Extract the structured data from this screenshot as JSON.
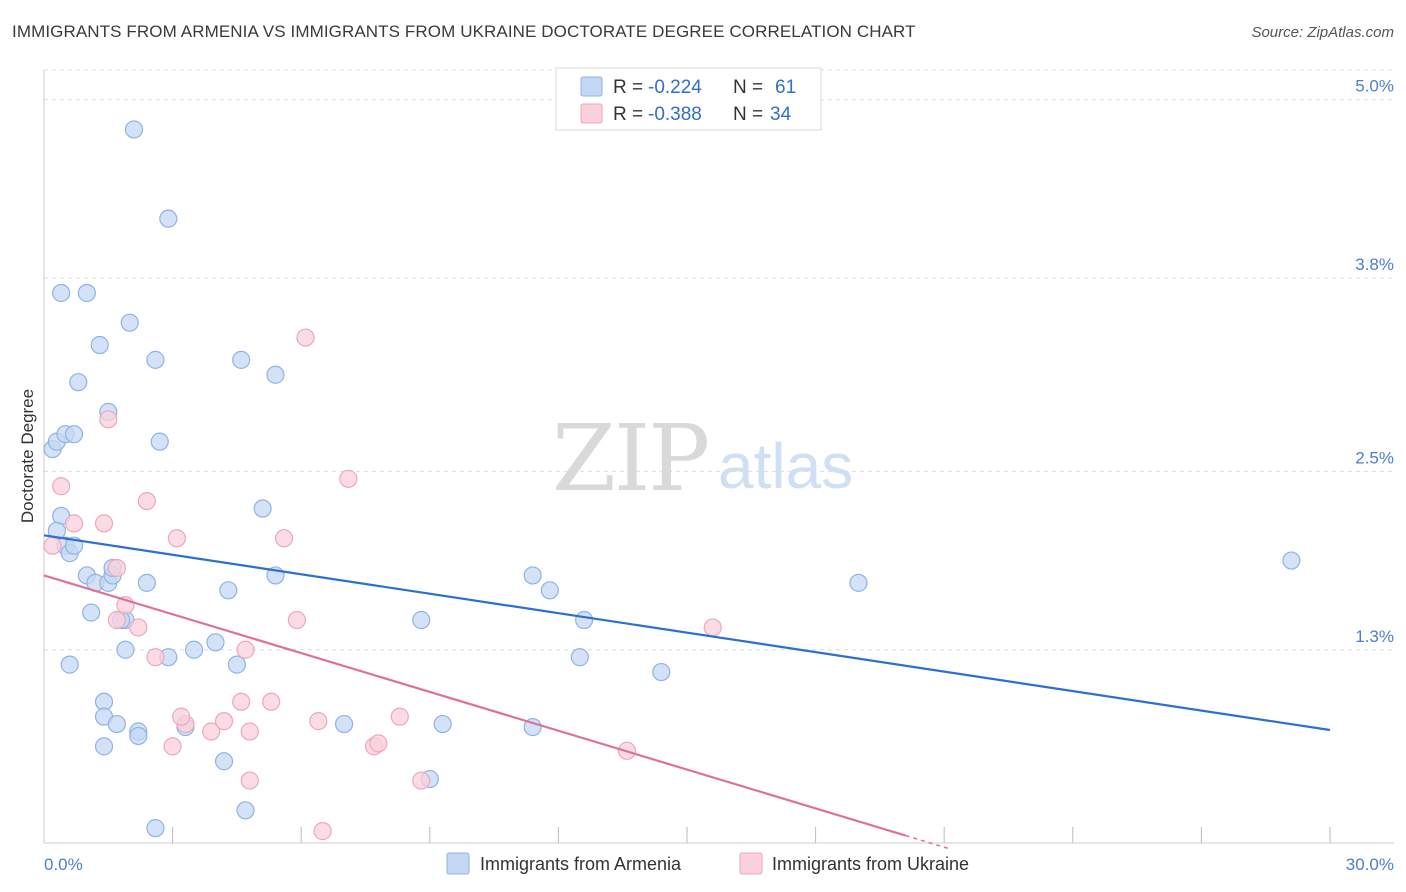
{
  "header": {
    "title": "IMMIGRANTS FROM ARMENIA VS IMMIGRANTS FROM UKRAINE DOCTORATE DEGREE CORRELATION CHART",
    "source": "Source: ZipAtlas.com"
  },
  "watermark": {
    "zip": "ZIP",
    "atlas": "atlas"
  },
  "colors": {
    "armenia_fill": "#c4d8f4",
    "armenia_stroke": "#8fb3e6",
    "armenia_line": "#2b6fd1",
    "ukraine_fill": "#f9d0dc",
    "ukraine_stroke": "#eda7bd",
    "ukraine_line": "#e0709a",
    "tick_text": "#4a7fd0",
    "grid": "#dcdcdc"
  },
  "legend_top": [
    {
      "r_label": "R =",
      "r_value": "-0.224",
      "n_label": "N =",
      "n_value": "61"
    },
    {
      "r_label": "R =",
      "r_value": "-0.388",
      "n_label": "N =",
      "n_value": "34"
    }
  ],
  "chart_data": {
    "type": "scatter",
    "title": "IMMIGRANTS FROM ARMENIA VS IMMIGRANTS FROM UKRAINE DOCTORATE DEGREE CORRELATION CHART",
    "xlabel": "",
    "ylabel": "Doctorate Degree",
    "xlim": [
      0,
      30
    ],
    "ylim": [
      0,
      5.2
    ],
    "x_tick_labels": [
      "0.0%",
      "30.0%"
    ],
    "y_ticks": [
      {
        "value": 1.3,
        "label": "1.3%"
      },
      {
        "value": 2.5,
        "label": "2.5%"
      },
      {
        "value": 3.8,
        "label": "3.8%"
      },
      {
        "value": 5.0,
        "label": "5.0%"
      }
    ],
    "series": [
      {
        "name": "Immigrants from Armenia",
        "r": -0.224,
        "n": 61,
        "trend": {
          "x": [
            0,
            30
          ],
          "y": [
            2.07,
            0.76
          ]
        },
        "points": [
          [
            0.2,
            2.65
          ],
          [
            0.3,
            2.7
          ],
          [
            0.5,
            2.75
          ],
          [
            0.7,
            2.75
          ],
          [
            0.4,
            2.2
          ],
          [
            0.3,
            2.1
          ],
          [
            0.5,
            2.0
          ],
          [
            0.6,
            1.95
          ],
          [
            0.7,
            2.0
          ],
          [
            0.8,
            3.1
          ],
          [
            1.5,
            2.9
          ],
          [
            0.4,
            3.7
          ],
          [
            1.0,
            3.7
          ],
          [
            1.3,
            3.35
          ],
          [
            2.0,
            3.5
          ],
          [
            2.6,
            3.25
          ],
          [
            4.6,
            3.25
          ],
          [
            5.4,
            3.15
          ],
          [
            2.1,
            4.8
          ],
          [
            2.9,
            4.2
          ],
          [
            2.7,
            2.7
          ],
          [
            1.0,
            1.8
          ],
          [
            1.2,
            1.75
          ],
          [
            1.5,
            1.75
          ],
          [
            1.6,
            1.8
          ],
          [
            1.1,
            1.55
          ],
          [
            1.9,
            1.5
          ],
          [
            1.9,
            1.3
          ],
          [
            2.4,
            1.75
          ],
          [
            2.9,
            1.25
          ],
          [
            1.8,
            1.5
          ],
          [
            4.3,
            1.7
          ],
          [
            4.0,
            1.35
          ],
          [
            4.5,
            1.2
          ],
          [
            3.5,
            1.3
          ],
          [
            0.6,
            1.2
          ],
          [
            1.4,
            0.95
          ],
          [
            1.4,
            0.85
          ],
          [
            1.7,
            0.8
          ],
          [
            2.2,
            0.75
          ],
          [
            2.2,
            0.72
          ],
          [
            3.3,
            0.78
          ],
          [
            1.4,
            0.65
          ],
          [
            4.2,
            0.55
          ],
          [
            4.7,
            0.22
          ],
          [
            2.6,
            0.1
          ],
          [
            5.1,
            2.25
          ],
          [
            5.4,
            1.8
          ],
          [
            7.0,
            0.8
          ],
          [
            8.8,
            1.5
          ],
          [
            9.3,
            0.8
          ],
          [
            9.0,
            0.43
          ],
          [
            11.4,
            1.8
          ],
          [
            11.8,
            1.7
          ],
          [
            12.6,
            1.5
          ],
          [
            12.5,
            1.25
          ],
          [
            11.4,
            0.78
          ],
          [
            14.4,
            1.15
          ],
          [
            19.0,
            1.75
          ],
          [
            29.1,
            1.9
          ],
          [
            1.6,
            1.85
          ]
        ]
      },
      {
        "name": "Immigrants from Ukraine",
        "r": -0.388,
        "n": 34,
        "trend": {
          "x": [
            0,
            20.1
          ],
          "y": [
            1.8,
            0.05
          ]
        },
        "points": [
          [
            0.2,
            2.0
          ],
          [
            0.4,
            2.4
          ],
          [
            0.7,
            2.15
          ],
          [
            1.4,
            2.15
          ],
          [
            1.5,
            2.85
          ],
          [
            2.4,
            2.3
          ],
          [
            3.1,
            2.05
          ],
          [
            1.7,
            1.85
          ],
          [
            1.9,
            1.6
          ],
          [
            1.7,
            1.5
          ],
          [
            2.2,
            1.45
          ],
          [
            2.6,
            1.25
          ],
          [
            3.0,
            0.65
          ],
          [
            3.3,
            0.8
          ],
          [
            3.2,
            0.85
          ],
          [
            3.9,
            0.75
          ],
          [
            4.2,
            0.82
          ],
          [
            4.6,
            0.95
          ],
          [
            4.8,
            0.75
          ],
          [
            5.3,
            0.95
          ],
          [
            4.8,
            0.42
          ],
          [
            4.7,
            1.3
          ],
          [
            5.6,
            2.05
          ],
          [
            5.9,
            1.5
          ],
          [
            6.1,
            3.4
          ],
          [
            6.4,
            0.82
          ],
          [
            7.1,
            2.45
          ],
          [
            7.7,
            0.65
          ],
          [
            7.8,
            0.67
          ],
          [
            8.3,
            0.85
          ],
          [
            8.8,
            0.42
          ],
          [
            6.5,
            0.08
          ],
          [
            13.6,
            0.62
          ],
          [
            15.6,
            1.45
          ]
        ]
      }
    ]
  },
  "legend_bottom": [
    {
      "label": "Immigrants from Armenia"
    },
    {
      "label": "Immigrants from Ukraine"
    }
  ]
}
